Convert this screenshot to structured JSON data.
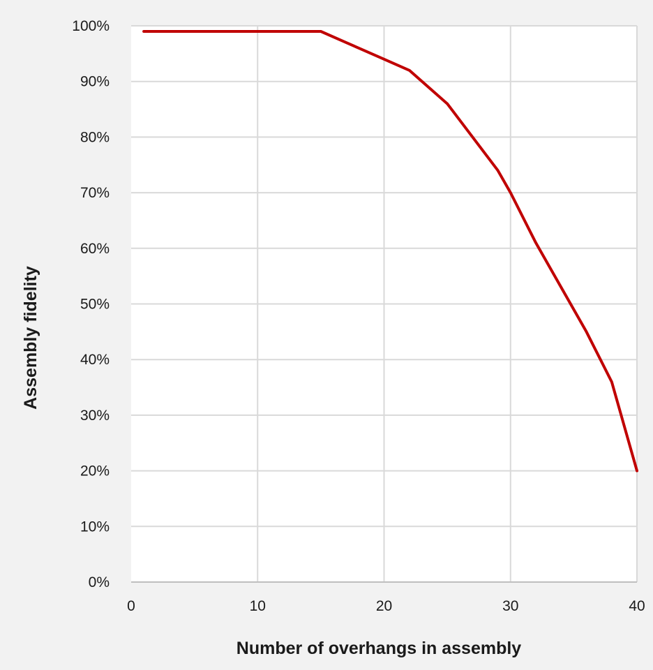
{
  "chart_data": {
    "type": "line",
    "title": "",
    "xlabel": "Number of overhangs in assembly",
    "ylabel": "Assembly fidelity",
    "xlim": [
      0,
      40
    ],
    "ylim": [
      0,
      1
    ],
    "x_ticks": [
      "0",
      "10",
      "20",
      "30",
      "40"
    ],
    "y_ticks": [
      "0%",
      "10%",
      "20%",
      "30%",
      "40%",
      "50%",
      "60%",
      "70%",
      "80%",
      "90%",
      "100%"
    ],
    "grid": true,
    "legend": "none",
    "series": [
      {
        "color": "#c00000",
        "points": [
          [
            1,
            0.99
          ],
          [
            5,
            0.99
          ],
          [
            10,
            0.99
          ],
          [
            15,
            0.99
          ],
          [
            17,
            0.97
          ],
          [
            18,
            0.96
          ],
          [
            20,
            0.94
          ],
          [
            22,
            0.92
          ],
          [
            25,
            0.86
          ],
          [
            28,
            0.77
          ],
          [
            29,
            0.74
          ],
          [
            30,
            0.7
          ],
          [
            32,
            0.61
          ],
          [
            34,
            0.53
          ],
          [
            36,
            0.45
          ],
          [
            38,
            0.36
          ],
          [
            40,
            0.2
          ]
        ]
      }
    ]
  }
}
